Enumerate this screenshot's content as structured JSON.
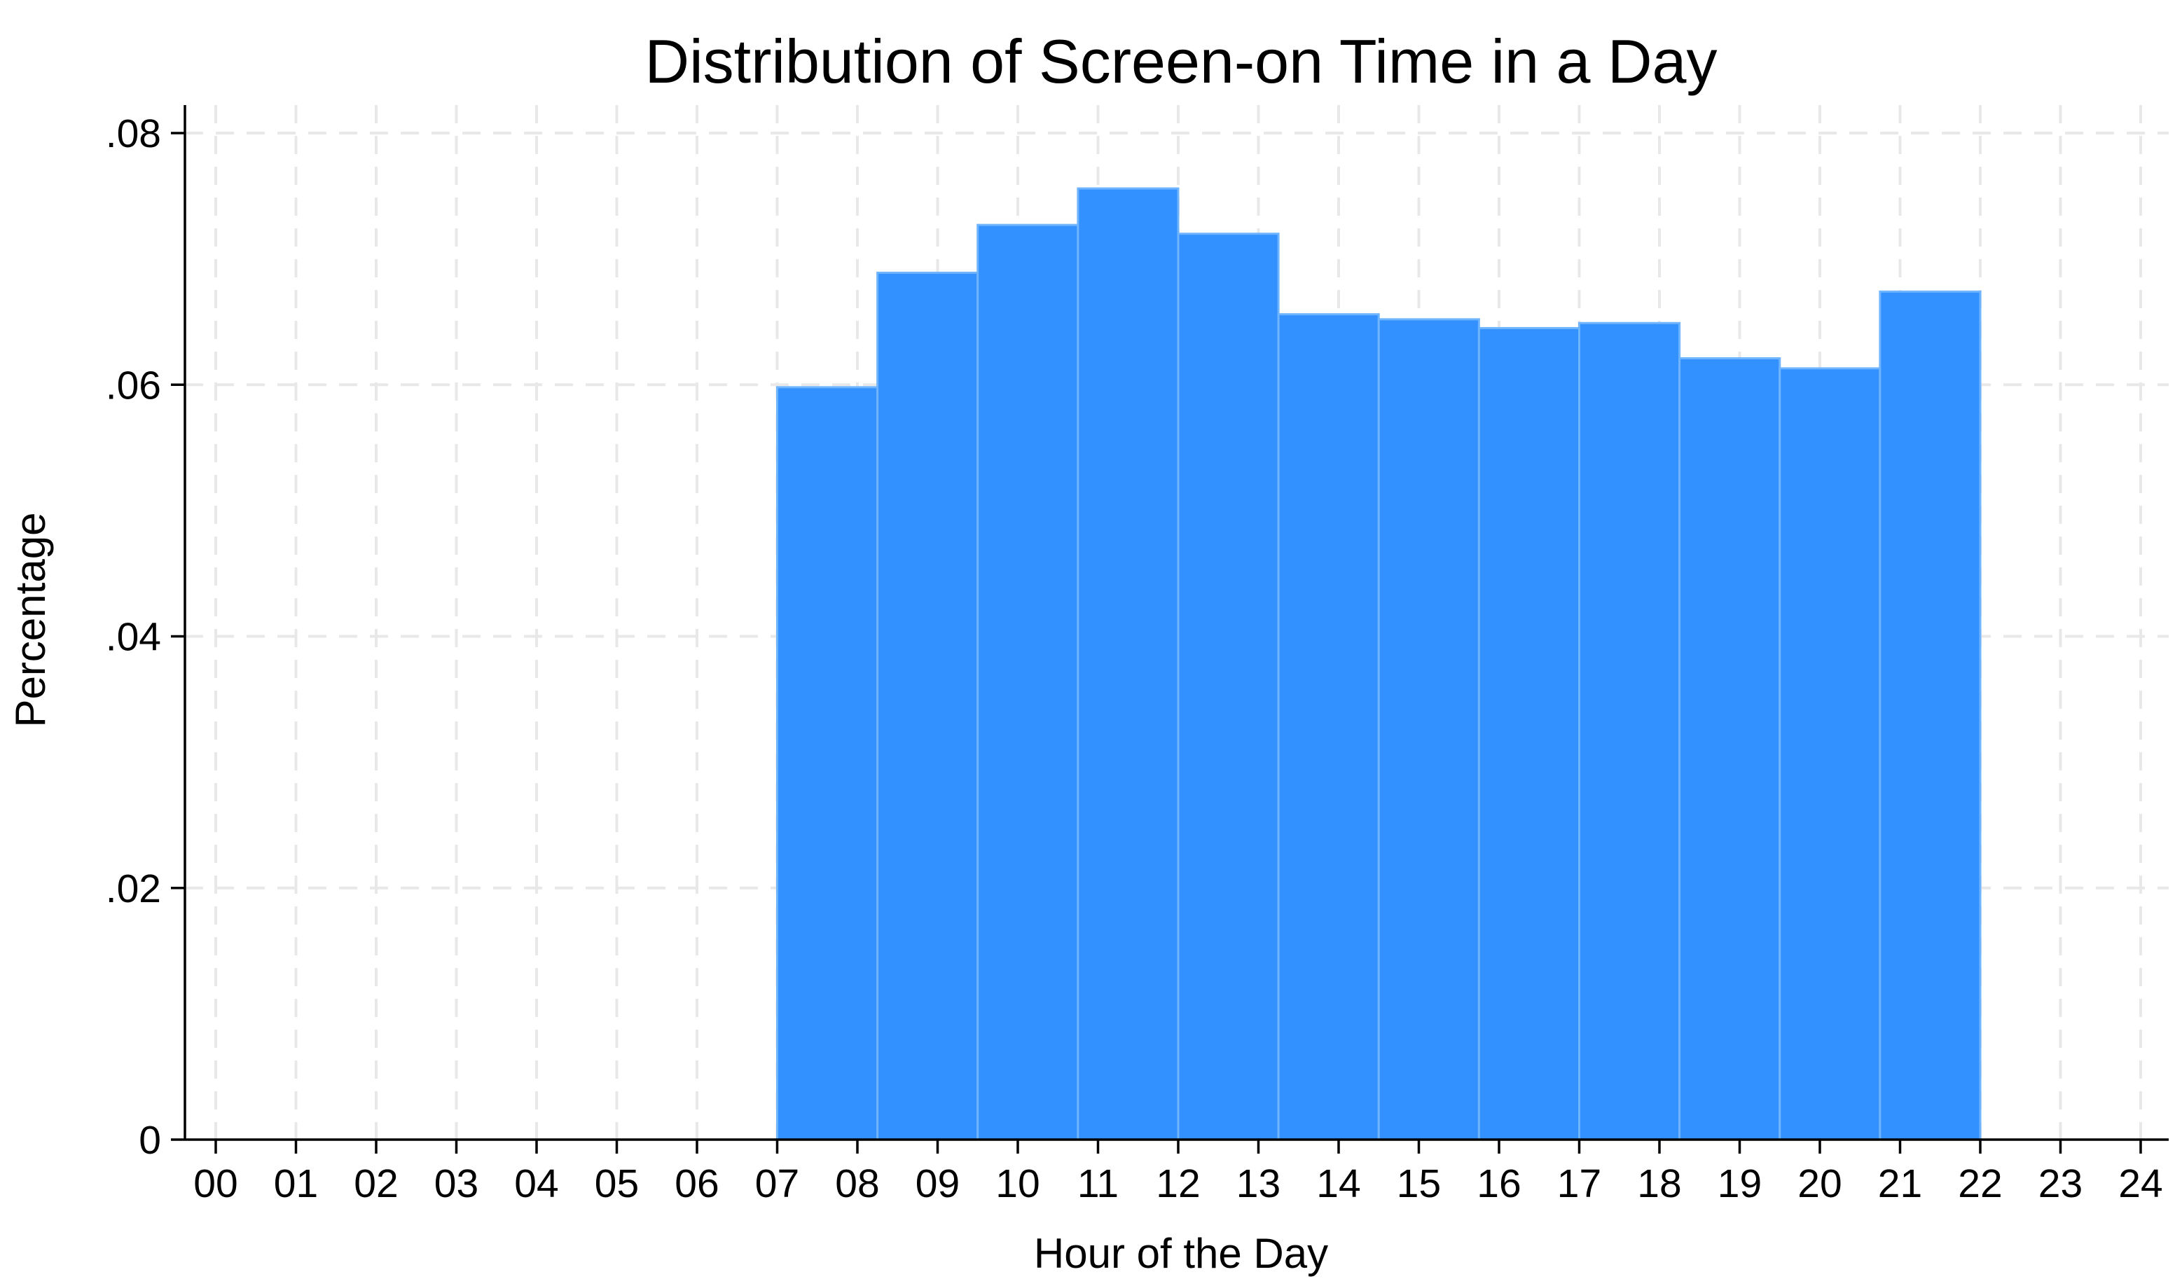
{
  "chart_data": {
    "type": "bar",
    "title": "Distribution of Screen-on Time in a Day",
    "xlabel": "Hour of the Day",
    "ylabel": "Percentage",
    "xlim": [
      0,
      24
    ],
    "ylim": [
      0,
      0.08
    ],
    "x_ticks": [
      "00",
      "01",
      "02",
      "03",
      "04",
      "05",
      "06",
      "07",
      "08",
      "09",
      "10",
      "11",
      "12",
      "13",
      "14",
      "15",
      "16",
      "17",
      "18",
      "19",
      "20",
      "21",
      "22",
      "23",
      "24"
    ],
    "y_ticks": [
      {
        "value": 0,
        "label": "0"
      },
      {
        "value": 0.02,
        "label": ".02"
      },
      {
        "value": 0.04,
        "label": ".04"
      },
      {
        "value": 0.06,
        "label": ".06"
      },
      {
        "value": 0.08,
        "label": ".08"
      }
    ],
    "grid": true,
    "bar_color": "#3390ff",
    "bar_edge_color": "#6fb4ff",
    "bins": [
      {
        "start": 7.0,
        "end": 8.25,
        "value": 0.0598
      },
      {
        "start": 8.25,
        "end": 9.5,
        "value": 0.0689
      },
      {
        "start": 9.5,
        "end": 10.75,
        "value": 0.0727
      },
      {
        "start": 10.75,
        "end": 12.0,
        "value": 0.0756
      },
      {
        "start": 12.0,
        "end": 13.25,
        "value": 0.072
      },
      {
        "start": 13.25,
        "end": 14.5,
        "value": 0.0656
      },
      {
        "start": 14.5,
        "end": 15.75,
        "value": 0.0652
      },
      {
        "start": 15.75,
        "end": 17.0,
        "value": 0.0645
      },
      {
        "start": 17.0,
        "end": 18.25,
        "value": 0.0649
      },
      {
        "start": 18.25,
        "end": 19.5,
        "value": 0.0621
      },
      {
        "start": 19.5,
        "end": 20.75,
        "value": 0.0613
      },
      {
        "start": 20.75,
        "end": 22.0,
        "value": 0.0674
      }
    ]
  }
}
